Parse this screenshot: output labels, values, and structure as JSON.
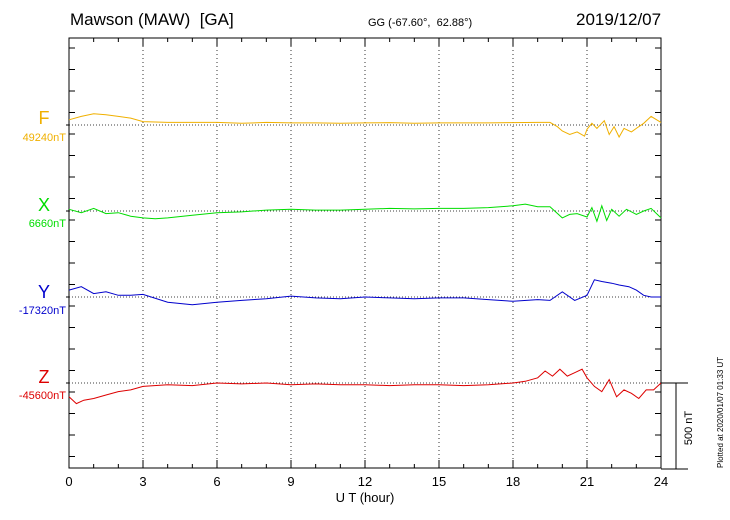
{
  "header": {
    "station": "Mawson (MAW)  [GA]",
    "coords": "GG (-67.60°,  62.88°)",
    "date": "2019/12/07"
  },
  "footer": {
    "xlabel": "U T (hour)",
    "plotted": "Plotted at 2020/01/07 01:33 UT"
  },
  "scale_bar_label": "500 nT",
  "colors": {
    "F": "#f0b000",
    "X": "#00dd00",
    "Y": "#0000cc",
    "Z": "#dd0000"
  },
  "chart_data": {
    "type": "line",
    "title": "Mawson (MAW)  [GA]",
    "xlabel": "U T (hour)",
    "xlim": [
      0,
      24
    ],
    "xticks": [
      "0",
      "3",
      "6",
      "9",
      "12",
      "15",
      "18",
      "21",
      "24"
    ],
    "scale_nT": 500,
    "grid": true,
    "series": [
      {
        "name": "F",
        "baseline_label": "49240nT",
        "x": [
          0,
          0.5,
          1,
          1.5,
          2,
          2.5,
          3,
          4,
          5,
          6,
          7,
          8,
          9,
          10,
          11,
          12,
          13,
          14,
          15,
          16,
          17,
          18,
          19,
          19.5,
          19.8,
          20,
          20.3,
          20.6,
          20.9,
          21,
          21.2,
          21.4,
          21.7,
          21.9,
          22.1,
          22.3,
          22.5,
          22.8,
          23,
          23.3,
          23.6,
          24
        ],
        "values": [
          30,
          50,
          65,
          60,
          50,
          40,
          20,
          15,
          15,
          15,
          10,
          15,
          12,
          12,
          10,
          12,
          14,
          10,
          12,
          12,
          12,
          14,
          15,
          15,
          -10,
          -35,
          -55,
          -40,
          -65,
          -25,
          10,
          -20,
          25,
          -55,
          -10,
          -70,
          -20,
          -40,
          -20,
          10,
          50,
          15
        ]
      },
      {
        "name": "X",
        "baseline_label": "6660nT",
        "x": [
          0,
          0.5,
          1,
          1.5,
          2,
          2.5,
          3,
          3.5,
          4,
          5,
          6,
          7,
          8,
          9,
          10,
          11,
          12,
          13,
          14,
          15,
          16,
          17,
          18,
          18.5,
          19,
          19.5,
          20,
          20.3,
          20.6,
          21,
          21.2,
          21.4,
          21.6,
          21.8,
          22,
          22.3,
          22.6,
          23,
          23.3,
          23.6,
          24
        ],
        "values": [
          10,
          -10,
          15,
          -15,
          -10,
          -30,
          -40,
          -45,
          -40,
          -25,
          -10,
          -5,
          5,
          10,
          5,
          5,
          10,
          15,
          12,
          15,
          15,
          20,
          30,
          40,
          25,
          25,
          -40,
          -20,
          -15,
          -35,
          20,
          -60,
          30,
          -55,
          10,
          -30,
          10,
          -20,
          0,
          15,
          -40
        ]
      },
      {
        "name": "Y",
        "baseline_label": "-17320nT",
        "x": [
          0,
          0.5,
          1,
          1.5,
          2,
          2.5,
          3,
          4,
          5,
          6,
          7,
          8,
          9,
          10,
          11,
          12,
          13,
          14,
          15,
          16,
          17,
          18,
          19,
          19.5,
          20,
          20.5,
          21,
          21.3,
          21.6,
          22,
          22.3,
          22.7,
          23,
          23.3,
          23.6,
          24
        ],
        "values": [
          40,
          60,
          20,
          30,
          10,
          10,
          15,
          -30,
          -45,
          -30,
          -20,
          -10,
          5,
          -5,
          -10,
          0,
          -5,
          -10,
          -5,
          -5,
          -15,
          -25,
          -15,
          -20,
          30,
          -20,
          10,
          100,
          90,
          80,
          70,
          60,
          40,
          10,
          0,
          0
        ]
      },
      {
        "name": "Z",
        "baseline_label": "-45600nT",
        "x": [
          0,
          0.3,
          0.6,
          1,
          1.5,
          2,
          2.5,
          3,
          4,
          5,
          6,
          7,
          8,
          9,
          10,
          11,
          12,
          13,
          14,
          15,
          16,
          17,
          18,
          18.5,
          19,
          19.3,
          19.6,
          19.9,
          20.2,
          20.5,
          20.8,
          21,
          21.3,
          21.6,
          21.9,
          22.2,
          22.5,
          22.8,
          23.1,
          23.4,
          23.7,
          24
        ],
        "values": [
          -80,
          -120,
          -100,
          -90,
          -70,
          -50,
          -40,
          -20,
          -10,
          -15,
          0,
          -5,
          0,
          -10,
          -5,
          -10,
          -10,
          -15,
          -10,
          -10,
          -15,
          -10,
          0,
          10,
          30,
          70,
          40,
          80,
          40,
          60,
          80,
          30,
          -20,
          -50,
          20,
          -80,
          -40,
          -60,
          -90,
          -40,
          -40,
          0
        ]
      }
    ]
  }
}
